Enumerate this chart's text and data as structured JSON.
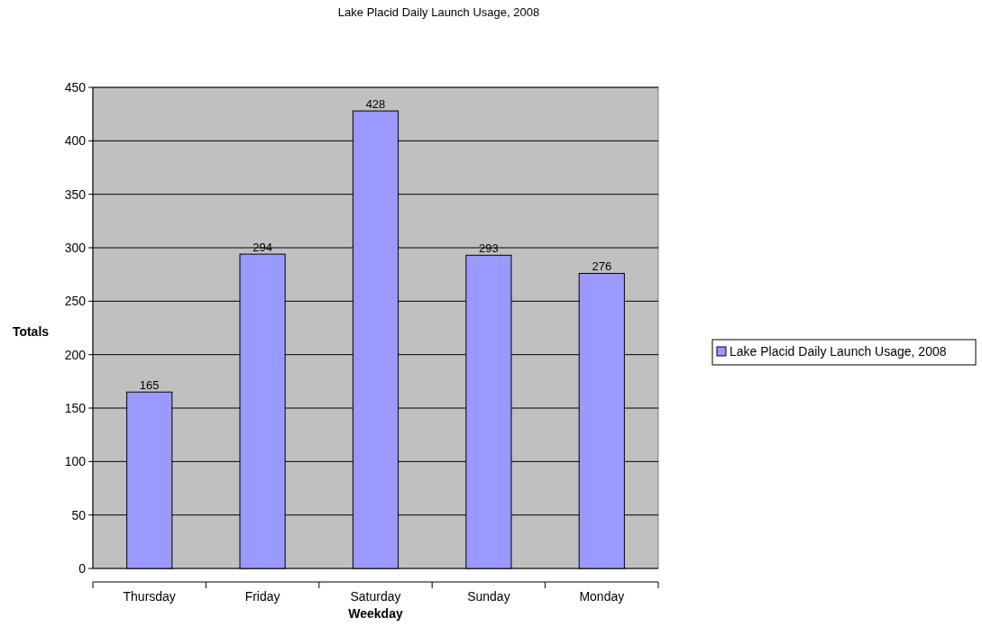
{
  "chart_data": {
    "type": "bar",
    "title": "Lake Placid Daily Launch Usage, 2008",
    "xlabel": "Weekday",
    "ylabel": "Totals",
    "categories": [
      "Thursday",
      "Friday",
      "Saturday",
      "Sunday",
      "Monday"
    ],
    "series": [
      {
        "name": "Lake Placid Daily Launch Usage, 2008",
        "color": "#9999ff",
        "values": [
          165,
          294,
          428,
          293,
          276
        ]
      }
    ],
    "ylim": [
      0,
      450
    ],
    "yticks": [
      0,
      50,
      100,
      150,
      200,
      250,
      300,
      350,
      400,
      450
    ],
    "grid": "y",
    "legend": "right",
    "data_labels": true
  }
}
